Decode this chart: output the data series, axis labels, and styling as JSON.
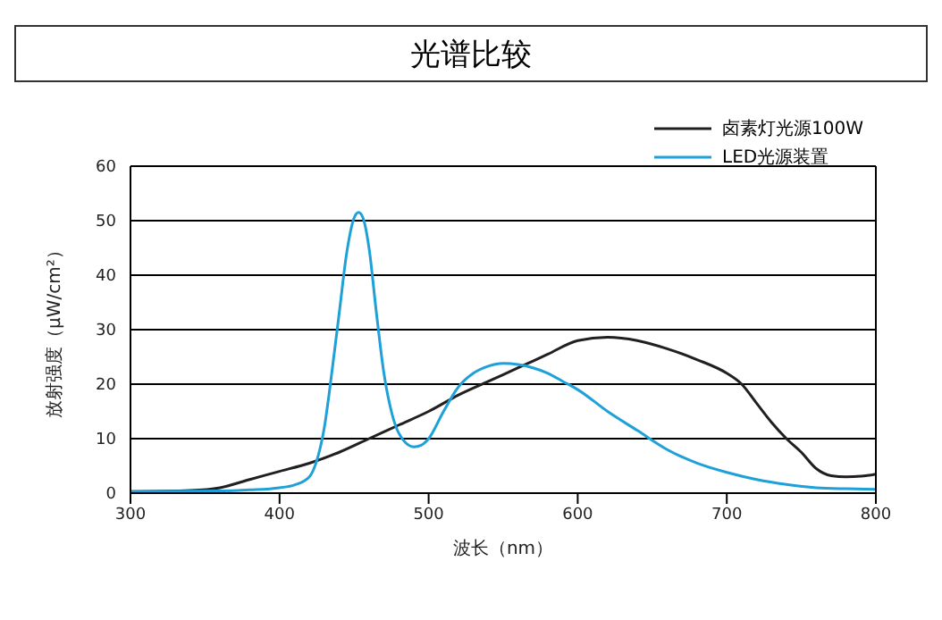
{
  "chart_data": {
    "type": "line",
    "title": "光谱比较",
    "xlabel": "波长（nm）",
    "ylabel": "放射强度（μW/cm²）",
    "xlim": [
      300,
      800
    ],
    "xticks": [
      300,
      400,
      500,
      600,
      700,
      800
    ],
    "ylim": [
      0,
      60
    ],
    "yticks": [
      0,
      10,
      20,
      30,
      40,
      50,
      60
    ],
    "grid": "y",
    "legend": "top right",
    "marker": "none",
    "line_style": "solid",
    "series": [
      {
        "name": "卤素灯光源100W",
        "color": "#231f20",
        "x": [
          300,
          340,
          360,
          380,
          400,
          420,
          440,
          460,
          480,
          500,
          520,
          540,
          560,
          580,
          600,
          620,
          640,
          660,
          680,
          700,
          710,
          720,
          730,
          740,
          750,
          760,
          770,
          780,
          790,
          800
        ],
        "values": [
          0.3,
          0.5,
          1,
          2.5,
          4,
          5.5,
          7.5,
          10,
          12.5,
          15,
          18,
          20.5,
          23,
          25.5,
          28,
          28.6,
          28,
          26.5,
          24.5,
          22,
          20,
          16.5,
          13,
          10,
          7.5,
          4.5,
          3.2,
          3,
          3.1,
          3.5
        ]
      },
      {
        "name": "LED光源装置",
        "color": "#1ea0d8",
        "x": [
          300,
          360,
          380,
          400,
          410,
          420,
          425,
          430,
          435,
          440,
          445,
          450,
          453,
          456,
          460,
          465,
          470,
          475,
          480,
          490,
          495,
          500,
          510,
          520,
          530,
          540,
          550,
          560,
          570,
          580,
          590,
          600,
          620,
          640,
          660,
          680,
          700,
          720,
          740,
          760,
          780,
          800
        ],
        "values": [
          0.3,
          0.4,
          0.6,
          1,
          1.5,
          3,
          6,
          12,
          22,
          33,
          44,
          50.5,
          51.5,
          50.5,
          45,
          33,
          22,
          15,
          11,
          8.5,
          8.8,
          10,
          15,
          19.5,
          22,
          23.3,
          23.8,
          23.6,
          23,
          22,
          20.5,
          19,
          15,
          11.5,
          8,
          5.5,
          3.8,
          2.5,
          1.6,
          1,
          0.8,
          0.7
        ]
      }
    ]
  }
}
